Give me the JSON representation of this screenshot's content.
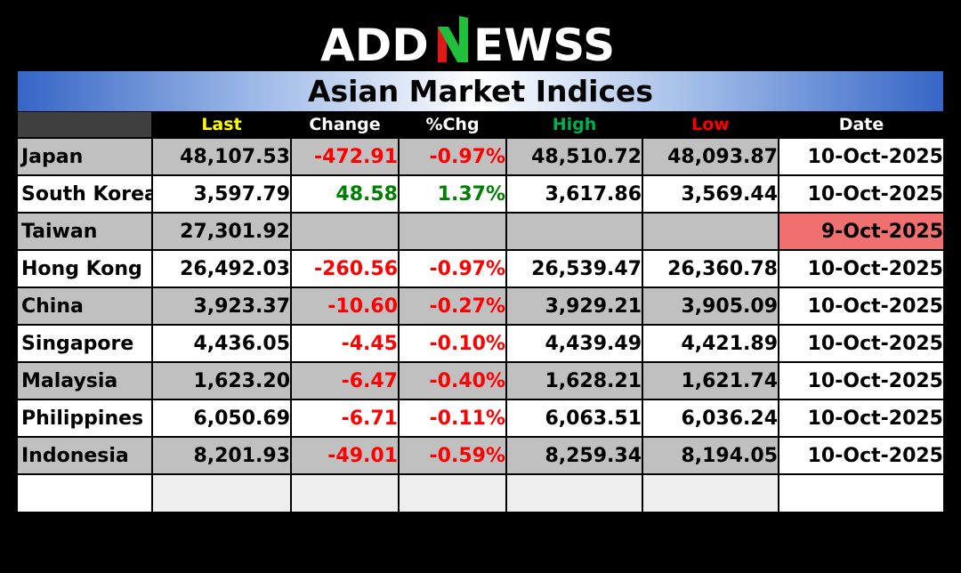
{
  "logo": {
    "text_left": "ADD",
    "text_right": "EWSS",
    "accent_color": "#e01818",
    "accent2_color": "#22c03a"
  },
  "title": "Asian Market Indices",
  "headers": {
    "last": "Last",
    "change": "Change",
    "pct_change": "%Chg",
    "high": "High",
    "low": "Low",
    "date": "Date"
  },
  "rows": [
    {
      "name": "Japan",
      "last": "48,107.53",
      "change": "-472.91",
      "pct": "-0.97%",
      "high": "48,510.72",
      "low": "48,093.87",
      "date": "10-Oct-2025"
    },
    {
      "name": "South Korea",
      "last": "3,597.79",
      "change": "48.58",
      "pct": "1.37%",
      "high": "3,617.86",
      "low": "3,569.44",
      "date": "10-Oct-2025"
    },
    {
      "name": "Taiwan",
      "last": "27,301.92",
      "change": "",
      "pct": "",
      "high": "",
      "low": "",
      "date": "9-Oct-2025"
    },
    {
      "name": "Hong Kong",
      "last": "26,492.03",
      "change": "-260.56",
      "pct": "-0.97%",
      "high": "26,539.47",
      "low": "26,360.78",
      "date": "10-Oct-2025"
    },
    {
      "name": "China",
      "last": "3,923.37",
      "change": "-10.60",
      "pct": "-0.27%",
      "high": "3,929.21",
      "low": "3,905.09",
      "date": "10-Oct-2025"
    },
    {
      "name": "Singapore",
      "last": "4,436.05",
      "change": "-4.45",
      "pct": "-0.10%",
      "high": "4,439.49",
      "low": "4,421.89",
      "date": "10-Oct-2025"
    },
    {
      "name": "Malaysia",
      "last": "1,623.20",
      "change": "-6.47",
      "pct": "-0.40%",
      "high": "1,628.21",
      "low": "1,621.74",
      "date": "10-Oct-2025"
    },
    {
      "name": "Philippines",
      "last": "6,050.69",
      "change": "-6.71",
      "pct": "-0.11%",
      "high": "6,063.51",
      "low": "6,036.24",
      "date": "10-Oct-2025"
    },
    {
      "name": "Indonesia",
      "last": "8,201.93",
      "change": "-49.01",
      "pct": "-0.59%",
      "high": "8,259.34",
      "low": "8,194.05",
      "date": "10-Oct-2025"
    }
  ],
  "colors": {
    "negative": "#ff0000",
    "positive": "#008000",
    "stale_date": "#f07070",
    "header_last": "#ffff00",
    "header_high": "#00b050",
    "header_low": "#ff0000"
  }
}
